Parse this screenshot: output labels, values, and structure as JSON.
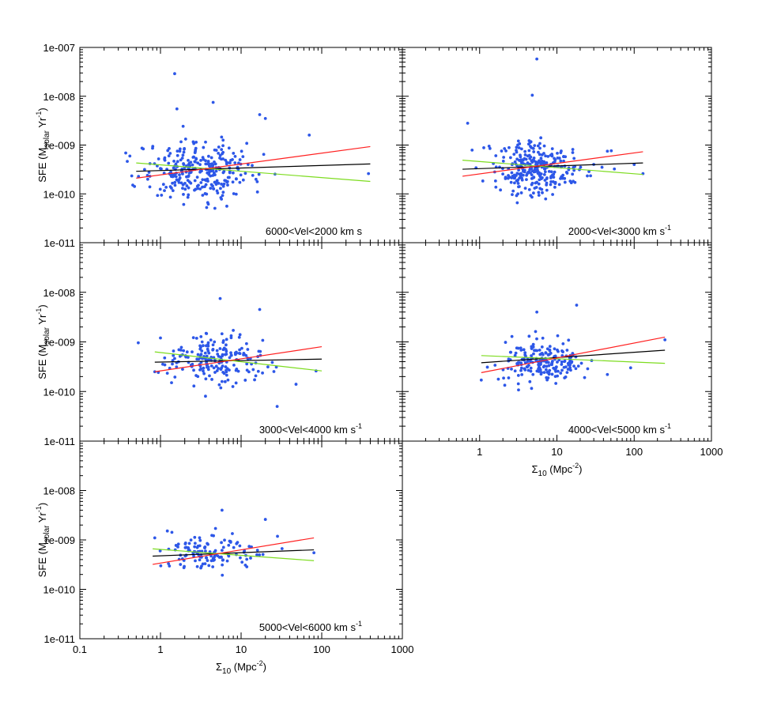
{
  "colors": {
    "points": "#2d57e8",
    "fit_red": "#ff1f1f",
    "fit_green": "#7ddc1f",
    "fit_black": "#000000",
    "frame": "#000000"
  },
  "chart_data": [
    {
      "type": "scatter",
      "panel": "top-left",
      "annotation": "6000<Vel<2000 km s",
      "annotation_sup": "",
      "x_scale": "log",
      "y_scale": "log",
      "xlim": [
        0.1,
        1000
      ],
      "ylim": [
        1e-11,
        1e-07
      ],
      "ylabel_main": "SFE (M",
      "ylabel_sub": "solar",
      "ylabel_tail": " Yr",
      "ylabel_sup": "-1",
      "ylabel_end": ")",
      "y_tick_labels": [
        "1e-007",
        "1e-008",
        "1e-009",
        "1e-010",
        "1e-011"
      ],
      "x_tick_labels": [],
      "xlabel": "",
      "fit_red": {
        "x": [
          0.5,
          400
        ],
        "y": [
          2.1e-10,
          9.3e-10
        ]
      },
      "fit_black": {
        "x": [
          0.5,
          400
        ],
        "y": [
          2.9e-10,
          4.1e-10
        ]
      },
      "fit_green": {
        "x": [
          0.5,
          400
        ],
        "y": [
          4.3e-10,
          1.8e-10
        ]
      },
      "n_points": 300,
      "cloud": {
        "log_x_center": 0.48,
        "log_x_spread": 0.36,
        "log_y_center": -9.52,
        "log_y_spread": 0.3
      },
      "outliers": {
        "x": [
          1.5,
          1.6,
          4.5,
          17,
          20,
          70,
          380
        ],
        "y": [
          2.9e-08,
          5.5e-09,
          7.5e-09,
          4.2e-09,
          3.5e-09,
          1.6e-09,
          2.6e-10
        ]
      }
    },
    {
      "type": "scatter",
      "panel": "top-right",
      "annotation": "2000<Vel<3000 km s",
      "annotation_sup": "-1",
      "x_scale": "log",
      "y_scale": "log",
      "xlim": [
        0.1,
        1000
      ],
      "ylim": [
        1e-11,
        1e-07
      ],
      "ylabel_main": "",
      "ylabel_sub": "",
      "ylabel_tail": "",
      "ylabel_sup": "",
      "ylabel_end": "",
      "y_tick_labels": [],
      "x_tick_labels": [],
      "xlabel": "",
      "fit_red": {
        "x": [
          0.6,
          130
        ],
        "y": [
          2.3e-10,
          7.3e-10
        ]
      },
      "fit_black": {
        "x": [
          0.6,
          130
        ],
        "y": [
          3.2e-10,
          4.3e-10
        ]
      },
      "fit_green": {
        "x": [
          0.6,
          130
        ],
        "y": [
          4.9e-10,
          2.5e-10
        ]
      },
      "n_points": 300,
      "cloud": {
        "log_x_center": 0.75,
        "log_x_spread": 0.3,
        "log_y_center": -9.48,
        "log_y_spread": 0.27
      },
      "outliers": {
        "x": [
          0.7,
          5.5,
          4.8,
          130,
          45,
          100
        ],
        "y": [
          2.8e-09,
          5.8e-08,
          1.05e-08,
          2.6e-10,
          7.5e-10,
          4e-10
        ]
      }
    },
    {
      "type": "scatter",
      "panel": "middle-left",
      "annotation": "3000<Vel<4000 km s",
      "annotation_sup": "-1",
      "x_scale": "log",
      "y_scale": "log",
      "xlim": [
        0.1,
        1000
      ],
      "ylim": [
        1e-11,
        1e-07
      ],
      "ylabel_main": "SFE (M",
      "ylabel_sub": "solar",
      "ylabel_tail": " Yr",
      "ylabel_sup": "-1",
      "ylabel_end": ")",
      "y_tick_labels": [
        "1e-008",
        "1e-009",
        "1e-010",
        "1e-011"
      ],
      "x_tick_labels": [],
      "xlabel": "",
      "fit_red": {
        "x": [
          0.85,
          100
        ],
        "y": [
          2.5e-10,
          8e-10
        ]
      },
      "fit_black": {
        "x": [
          0.85,
          100
        ],
        "y": [
          3.9e-10,
          4.5e-10
        ]
      },
      "fit_green": {
        "x": [
          0.85,
          100
        ],
        "y": [
          6.3e-10,
          2.6e-10
        ]
      },
      "n_points": 200,
      "cloud": {
        "log_x_center": 0.68,
        "log_x_spread": 0.28,
        "log_y_center": -9.37,
        "log_y_spread": 0.26
      },
      "outliers": {
        "x": [
          5.5,
          17,
          28,
          85,
          1,
          0.85,
          48
        ],
        "y": [
          7.5e-09,
          4.5e-09,
          5e-11,
          2.6e-10,
          1.2e-09,
          2.5e-10,
          1.4e-10
        ]
      }
    },
    {
      "type": "scatter",
      "panel": "middle-right",
      "annotation": "4000<Vel<5000 km s",
      "annotation_sup": "-1",
      "x_scale": "log",
      "y_scale": "log",
      "xlim": [
        0.1,
        1000
      ],
      "ylim": [
        1e-11,
        1e-07
      ],
      "ylabel_main": "",
      "ylabel_sub": "",
      "ylabel_tail": "",
      "ylabel_sup": "",
      "ylabel_end": "",
      "y_tick_labels": [],
      "x_tick_labels": [
        "1",
        "10",
        "100",
        "1000"
      ],
      "xlabel": "Σ",
      "xlabel_sub": "10",
      "xlabel_tail": " (Mpc",
      "xlabel_sup": "-2",
      "xlabel_end": ")",
      "fit_red": {
        "x": [
          1.05,
          250
        ],
        "y": [
          2.4e-10,
          1.25e-09
        ]
      },
      "fit_black": {
        "x": [
          1.05,
          250
        ],
        "y": [
          3.8e-10,
          6.8e-10
        ]
      },
      "fit_green": {
        "x": [
          1.05,
          250
        ],
        "y": [
          5.3e-10,
          3.7e-10
        ]
      },
      "n_points": 200,
      "cloud": {
        "log_x_center": 0.83,
        "log_x_spread": 0.25,
        "log_y_center": -9.38,
        "log_y_spread": 0.22
      },
      "outliers": {
        "x": [
          18,
          5.5,
          250,
          90,
          1.05,
          45
        ],
        "y": [
          5.5e-09,
          4e-09,
          1.1e-09,
          3e-10,
          1.7e-10,
          2.2e-10
        ]
      }
    },
    {
      "type": "scatter",
      "panel": "bottom-left",
      "annotation": "5000<Vel<6000 km s",
      "annotation_sup": "-1",
      "x_scale": "log",
      "y_scale": "log",
      "xlim": [
        0.1,
        1000
      ],
      "ylim": [
        1e-11,
        1e-07
      ],
      "ylabel_main": "SFE (M",
      "ylabel_sub": "solar",
      "ylabel_tail": " Yr",
      "ylabel_sup": "-1",
      "ylabel_end": ")",
      "y_tick_labels": [
        "1e-008",
        "1e-009",
        "1e-010",
        "1e-011"
      ],
      "x_tick_labels": [
        "0.1",
        "1",
        "10",
        "100",
        "1000"
      ],
      "xlabel": "Σ",
      "xlabel_sub": "10",
      "xlabel_tail": " (Mpc",
      "xlabel_sup": "-2",
      "xlabel_end": ")",
      "fit_red": {
        "x": [
          0.8,
          80
        ],
        "y": [
          3.2e-10,
          1.1e-09
        ]
      },
      "fit_black": {
        "x": [
          0.8,
          80
        ],
        "y": [
          4.7e-10,
          6.3e-10
        ]
      },
      "fit_green": {
        "x": [
          0.8,
          80
        ],
        "y": [
          6.6e-10,
          3.8e-10
        ]
      },
      "n_points": 130,
      "cloud": {
        "log_x_center": 0.62,
        "log_x_spread": 0.3,
        "log_y_center": -9.28,
        "log_y_spread": 0.18
      },
      "outliers": {
        "x": [
          5.8,
          20,
          0.85,
          80
        ],
        "y": [
          4e-09,
          2.6e-09,
          1.1e-09,
          5.5e-10
        ]
      }
    }
  ]
}
